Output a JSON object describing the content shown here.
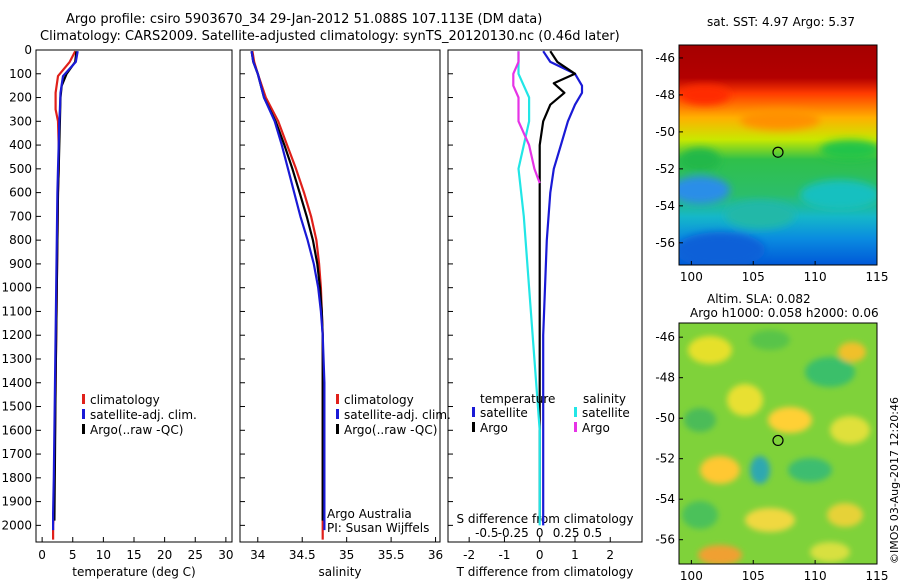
{
  "header": {
    "line1": "Argo profile: csiro 5903670_34 29-Jan-2012 51.088S 107.113E (DM data)",
    "line2": "Climatology: CARS2009. Satellite-adjusted climatology: synTS_20120130.nc (0.46d later)"
  },
  "side_text": "©IMOS 03-Aug-2017 12:20:46",
  "colors": {
    "climatology": "#e0201a",
    "satellite": "#1a1ad6",
    "argo": "#000000",
    "sal_satellite": "#22e6e6",
    "sal_argo": "#e633e6"
  },
  "legend": {
    "climatology": "climatology",
    "satellite": "satellite-adj. clim.",
    "argo": "Argo(..raw -QC)"
  },
  "diff_legend": {
    "temperature": "temperature",
    "salinity": "salinity",
    "satellite": "satellite",
    "argo": "Argo"
  },
  "credits": {
    "line1": "Argo Australia",
    "line2": "PI: Susan Wijffels"
  },
  "maps": {
    "sst": {
      "title": "sat. SST: 4.97 Argo: 5.37"
    },
    "sla": {
      "title_line1": "Altim. SLA: 0.082",
      "title_line2": "Argo h1000: 0.058 h2000: 0.06"
    }
  },
  "chart_data": [
    {
      "type": "line",
      "xlabel": "temperature (deg C)",
      "ylabel": "",
      "xlim": [
        -1,
        31
      ],
      "ylim": [
        2070,
        0
      ],
      "xticks": [
        0,
        5,
        10,
        15,
        20,
        25,
        30
      ],
      "yticks": [
        0,
        100,
        200,
        300,
        400,
        500,
        600,
        700,
        800,
        900,
        1000,
        1100,
        1200,
        1300,
        1400,
        1500,
        1600,
        1700,
        1800,
        1900,
        2000
      ],
      "series": [
        {
          "name": "climatology",
          "color": "#e0201a",
          "x": [
            5.4,
            4.5,
            2.6,
            2.2,
            2.2,
            2.6,
            2.7,
            2.7,
            2.6,
            2.5,
            2.4,
            2.3,
            2.2,
            2.1,
            2.0,
            1.9,
            1.8,
            1.8
          ],
          "y": [
            5,
            50,
            110,
            180,
            250,
            300,
            400,
            500,
            600,
            800,
            1000,
            1200,
            1400,
            1600,
            1800,
            1950,
            2000,
            2060
          ]
        },
        {
          "name": "argo",
          "color": "#000000",
          "x": [
            5.6,
            5.4,
            4.0,
            3.2,
            3.0,
            2.9,
            2.8,
            2.7,
            2.6,
            2.5,
            2.4,
            2.3,
            2.2,
            2.1,
            2.0
          ],
          "y": [
            5,
            50,
            100,
            150,
            200,
            300,
            400,
            500,
            600,
            800,
            1000,
            1200,
            1400,
            1700,
            1980
          ]
        },
        {
          "name": "satellite-adj. clim.",
          "color": "#1a1ad6",
          "x": [
            5.8,
            5.5,
            3.4,
            3.0,
            2.9,
            2.8,
            2.7,
            2.6,
            2.5,
            2.4,
            2.3,
            2.2,
            2.1,
            2.0,
            1.9,
            1.8,
            1.8
          ],
          "y": [
            5,
            50,
            110,
            180,
            250,
            300,
            400,
            500,
            600,
            800,
            1000,
            1200,
            1400,
            1600,
            1800,
            1950,
            2020
          ]
        }
      ]
    },
    {
      "type": "line",
      "xlabel": "salinity",
      "ylabel": "",
      "xlim": [
        33.8,
        36.05
      ],
      "ylim": [
        2070,
        0
      ],
      "xticks": [
        34,
        34.5,
        35,
        35.5,
        36
      ],
      "series": [
        {
          "name": "climatology",
          "color": "#e0201a",
          "x": [
            33.94,
            33.96,
            34.0,
            34.09,
            34.23,
            34.33,
            34.43,
            34.52,
            34.6,
            34.66,
            34.69,
            34.71,
            34.72,
            34.73,
            34.73,
            34.73
          ],
          "y": [
            5,
            50,
            100,
            200,
            300,
            400,
            500,
            600,
            700,
            800,
            900,
            1000,
            1100,
            1200,
            1400,
            2060
          ]
        },
        {
          "name": "argo",
          "color": "#000000",
          "x": [
            33.93,
            33.95,
            34.0,
            34.07,
            34.2,
            34.3,
            34.39,
            34.47,
            34.55,
            34.62,
            34.67,
            34.7,
            34.72,
            34.73,
            34.73
          ],
          "y": [
            5,
            50,
            100,
            200,
            300,
            400,
            500,
            600,
            700,
            800,
            900,
            1000,
            1100,
            1200,
            1980
          ]
        },
        {
          "name": "satellite-adj. clim.",
          "color": "#1a1ad6",
          "x": [
            33.93,
            33.95,
            34.0,
            34.07,
            34.19,
            34.27,
            34.34,
            34.41,
            34.48,
            34.56,
            34.63,
            34.68,
            34.71,
            34.73,
            34.75,
            34.75
          ],
          "y": [
            5,
            50,
            100,
            200,
            300,
            400,
            500,
            600,
            700,
            800,
            900,
            1000,
            1100,
            1200,
            1400,
            2020
          ]
        }
      ]
    },
    {
      "type": "line",
      "xlabel": "T difference from climatology",
      "x2label": "S difference from climatology",
      "ylabel": "",
      "xlim": [
        -2.6,
        2.9
      ],
      "ylim": [
        2070,
        0
      ],
      "xticks": [
        -2,
        -1,
        0,
        1,
        2
      ],
      "x2ticks": [
        -0.5,
        -0.25,
        0,
        0.25,
        0.5
      ],
      "series": [
        {
          "name": "T satellite",
          "color": "#1a1ad6",
          "x": [
            0.1,
            0.3,
            1.0,
            1.2,
            1.2,
            1.0,
            0.8,
            0.6,
            0.4,
            0.3,
            0.2,
            0.15,
            0.1,
            0.1,
            0.1,
            0.1
          ],
          "y": [
            5,
            50,
            100,
            150,
            180,
            230,
            300,
            400,
            500,
            600,
            800,
            1000,
            1200,
            1500,
            1800,
            2000
          ]
        },
        {
          "name": "T Argo",
          "color": "#000000",
          "x": [
            0.3,
            0.5,
            1.0,
            0.4,
            0.7,
            0.3,
            0.1,
            0.0,
            0.0,
            0.0,
            0.0,
            0.0,
            0.0
          ],
          "y": [
            5,
            50,
            100,
            140,
            180,
            230,
            300,
            400,
            600,
            800,
            1000,
            1200,
            1980
          ]
        },
        {
          "name": "S satellite",
          "color": "#22e6e6",
          "x": [
            -0.2,
            -0.2,
            -0.1,
            -0.1,
            -0.15,
            -0.2,
            -0.15,
            -0.1,
            -0.05,
            0.0,
            0.0
          ],
          "y": [
            5,
            100,
            200,
            300,
            400,
            500,
            700,
            1000,
            1300,
            1600,
            2000
          ]
        },
        {
          "name": "S Argo",
          "color": "#e633e6",
          "x": [
            -0.2,
            -0.2,
            -0.25,
            -0.25,
            -0.2,
            -0.2,
            -0.1,
            -0.05,
            0.0
          ],
          "y": [
            5,
            50,
            100,
            150,
            200,
            300,
            400,
            500,
            560
          ]
        }
      ]
    },
    {
      "type": "heatmap",
      "title": "sat. SST: 4.97 Argo: 5.37",
      "xlim": [
        99,
        115
      ],
      "ylim": [
        -57.2,
        -45.3
      ],
      "xticks": [
        100,
        105,
        110,
        115
      ],
      "yticks": [
        -46,
        -48,
        -50,
        -52,
        -54,
        -56
      ],
      "marker": [
        107,
        -51.1
      ]
    },
    {
      "type": "heatmap",
      "title": "Altim. SLA: 0.082 / Argo h1000: 0.058 h2000: 0.06",
      "xlim": [
        99,
        115
      ],
      "ylim": [
        -57.2,
        -45.3
      ],
      "xticks": [
        100,
        105,
        110,
        115
      ],
      "yticks": [
        -46,
        -48,
        -50,
        -52,
        -54,
        -56
      ],
      "marker": [
        107,
        -51.1
      ]
    }
  ]
}
